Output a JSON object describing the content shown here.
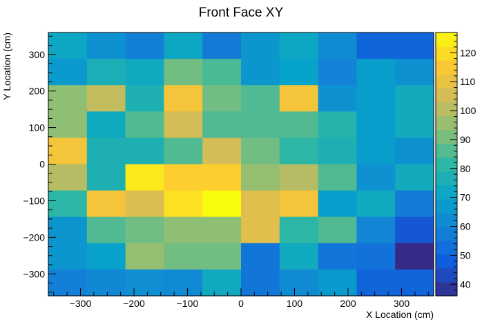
{
  "chart_data": {
    "type": "heatmap",
    "title": "Front Face XY",
    "xlabel": "X Location (cm)",
    "ylabel": "Y Location (cm)",
    "xlim": [
      -360,
      360
    ],
    "ylim": [
      -360,
      360
    ],
    "zlim": [
      36,
      127
    ],
    "x_ticks": [
      -300,
      -200,
      -100,
      0,
      100,
      200,
      300
    ],
    "y_ticks": [
      -300,
      -200,
      -100,
      0,
      100,
      200,
      300
    ],
    "z_ticks": [
      40,
      50,
      60,
      70,
      80,
      90,
      100,
      110,
      120
    ],
    "x_tick_labels": [
      "−300",
      "−200",
      "−100",
      "0",
      "100",
      "200",
      "300"
    ],
    "y_tick_labels": [
      "−300",
      "−200",
      "−100",
      "0",
      "100",
      "200",
      "300"
    ],
    "z_tick_labels": [
      "40",
      "50",
      "60",
      "70",
      "80",
      "90",
      "100",
      "110",
      "120"
    ],
    "x_bin_edges": [
      -360,
      -288,
      -216,
      -144,
      -72,
      0,
      72,
      144,
      216,
      288,
      360
    ],
    "y_bin_edges": [
      360,
      288,
      216,
      144,
      72,
      0,
      -72,
      -144,
      -216,
      -288,
      -360
    ],
    "values": [
      [
        72,
        64,
        58,
        72,
        57,
        66,
        72,
        62,
        50,
        50
      ],
      [
        67,
        76,
        73,
        90,
        85,
        66,
        70,
        59,
        68,
        64
      ],
      [
        94,
        102,
        77,
        113,
        90,
        86,
        113,
        64,
        68,
        74
      ],
      [
        94,
        73,
        86,
        105,
        86,
        86,
        86,
        79,
        68,
        74
      ],
      [
        113,
        77,
        77,
        86,
        105,
        90,
        81,
        77,
        68,
        64
      ],
      [
        100,
        77,
        123,
        117,
        117,
        95,
        100,
        86,
        64,
        74
      ],
      [
        81,
        113,
        107,
        121,
        127,
        108,
        113,
        68,
        73,
        57
      ],
      [
        65,
        86,
        90,
        94,
        94,
        108,
        81,
        86,
        60,
        46
      ],
      [
        66,
        69,
        95,
        90,
        90,
        55,
        73,
        55,
        54,
        36
      ],
      [
        58,
        61,
        63,
        62,
        73,
        55,
        62,
        67,
        50,
        50
      ]
    ],
    "palette": [
      "#352a87",
      "#0f5cdd",
      "#1481d6",
      "#06a4ca",
      "#2eb7a4",
      "#87bf77",
      "#d1bb59",
      "#fec832",
      "#f9fb0e"
    ],
    "grid": false,
    "colorbar": "right"
  }
}
